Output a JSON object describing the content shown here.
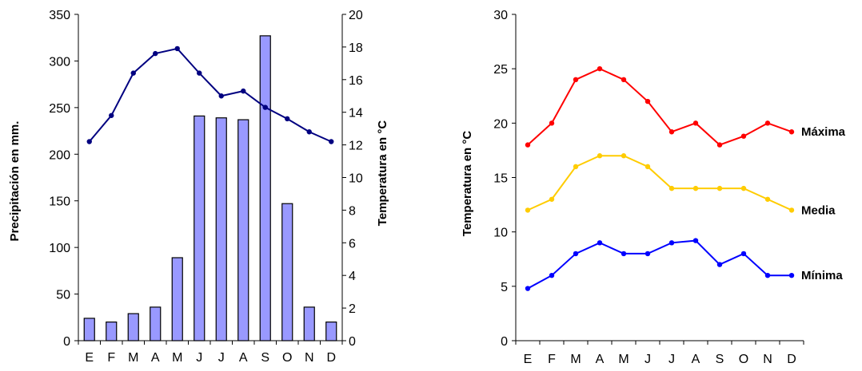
{
  "chart_data": [
    {
      "type": "bar+line",
      "categories": [
        "E",
        "F",
        "M",
        "A",
        "M",
        "J",
        "J",
        "A",
        "S",
        "O",
        "N",
        "D"
      ],
      "ylabel_left": "Precipitación en mm.",
      "ylabel_right": "Temperatura en °C",
      "ylim_left": [
        0,
        350
      ],
      "yticks_left": [
        0,
        50,
        100,
        150,
        200,
        250,
        300,
        350
      ],
      "ylim_right": [
        0,
        20
      ],
      "yticks_right": [
        0,
        2,
        4,
        6,
        8,
        10,
        12,
        14,
        16,
        18,
        20
      ],
      "grid": false,
      "bar_series": {
        "axis": "left",
        "color": "#9999ff",
        "values": [
          24,
          20,
          29,
          36,
          89,
          241,
          239,
          237,
          327,
          147,
          36,
          20
        ]
      },
      "line_series": {
        "axis": "right",
        "color": "#000080",
        "values": [
          12.2,
          13.8,
          16.4,
          17.6,
          17.9,
          16.4,
          15.0,
          15.3,
          14.3,
          13.6,
          12.8,
          12.2
        ]
      }
    },
    {
      "type": "line",
      "categories": [
        "E",
        "F",
        "M",
        "A",
        "M",
        "J",
        "J",
        "A",
        "S",
        "O",
        "N",
        "D"
      ],
      "ylabel": "Temperatura en °C",
      "ylim": [
        0,
        30
      ],
      "yticks": [
        0,
        5,
        10,
        15,
        20,
        25,
        30
      ],
      "grid": false,
      "series": [
        {
          "name": "Máxima",
          "color": "#ff0000",
          "values": [
            18,
            20,
            24,
            25,
            24,
            22,
            19.2,
            20,
            18,
            18.8,
            20,
            19.2
          ]
        },
        {
          "name": "Media",
          "color": "#ffcc00",
          "values": [
            12,
            13,
            16,
            17,
            17,
            16,
            14,
            14,
            14,
            14,
            13,
            12
          ]
        },
        {
          "name": "Mínima",
          "color": "#0000ff",
          "values": [
            4.8,
            6,
            8,
            9,
            8,
            8,
            9,
            9.2,
            7,
            8,
            6,
            6
          ]
        }
      ]
    }
  ]
}
